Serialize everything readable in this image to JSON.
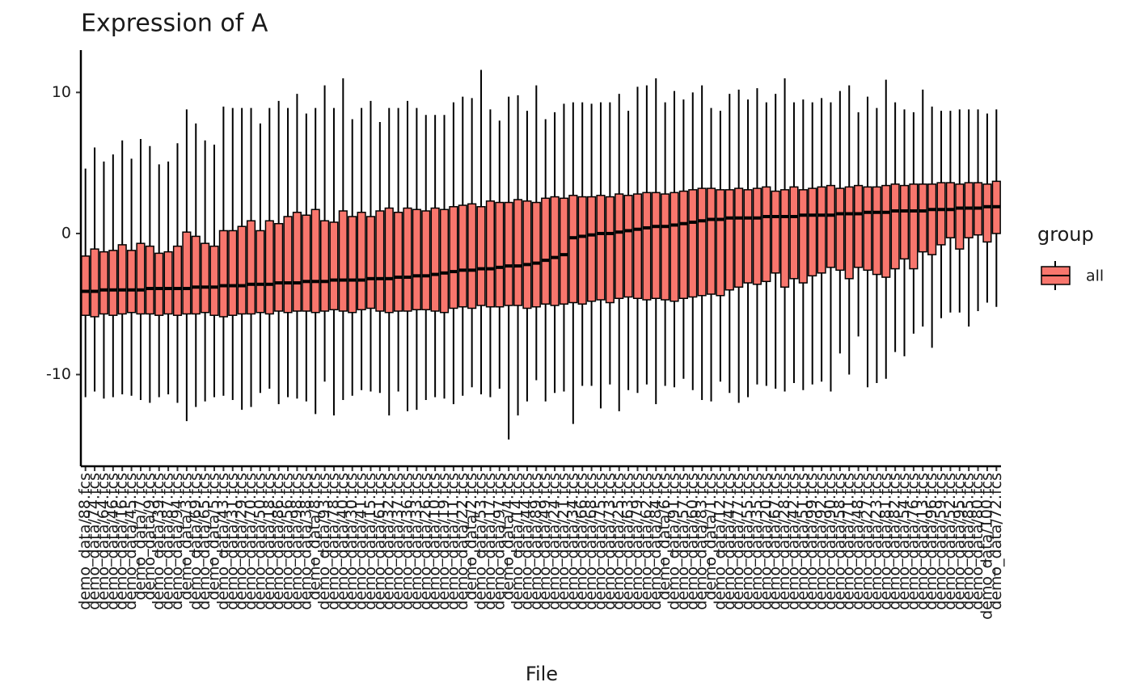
{
  "chart_data": {
    "type": "boxplot",
    "title": "Expression of A",
    "x_label": "File",
    "legend_title": "group",
    "categories": [
      "demo_data/88.fcs",
      "demo_data/74.fcs",
      "demo_data/64.fcs",
      "demo_data/46.fcs",
      "demo_data/16.fcs",
      "demo_data/45.fcs",
      "demo_data/7.fcs",
      "demo_data/9.fcs",
      "demo_data/39.fcs",
      "demo_data/87.fcs",
      "demo_data/94.fcs",
      "demo_data/3.fcs",
      "demo_data/69.fcs",
      "demo_data/65.fcs",
      "demo_data/5.fcs",
      "demo_data/43.fcs",
      "demo_data/31.fcs",
      "demo_data/29.fcs",
      "demo_data/70.fcs",
      "demo_data/50.fcs",
      "demo_data/18.fcs",
      "demo_data/86.fcs",
      "demo_data/56.fcs",
      "demo_data/98.fcs",
      "demo_data/38.fcs",
      "demo_data/8.fcs",
      "demo_data/93.fcs",
      "demo_data/78.fcs",
      "demo_data/40.fcs",
      "demo_data/30.fcs",
      "demo_data/41.fcs",
      "demo_data/15.fcs",
      "demo_data/61.fcs",
      "demo_data/32.fcs",
      "demo_data/37.fcs",
      "demo_data/36.fcs",
      "demo_data/33.fcs",
      "demo_data/26.fcs",
      "demo_data/10.fcs",
      "demo_data/19.fcs",
      "demo_data/11.fcs",
      "demo_data/22.fcs",
      "demo_data/2.fcs",
      "demo_data/53.fcs",
      "demo_data/17.fcs",
      "demo_data/97.fcs",
      "demo_data/4.fcs",
      "demo_data/14.fcs",
      "demo_data/44.fcs",
      "demo_data/89.fcs",
      "demo_data/49.fcs",
      "demo_data/24.fcs",
      "demo_data/21.fcs",
      "demo_data/34.fcs",
      "demo_data/66.fcs",
      "demo_data/68.fcs",
      "demo_data/75.fcs",
      "demo_data/73.fcs",
      "demo_data/25.fcs",
      "demo_data/63.fcs",
      "demo_data/79.fcs",
      "demo_data/62.fcs",
      "demo_data/84.fcs",
      "demo_data/6.fcs",
      "demo_data/91.fcs",
      "demo_data/57.fcs",
      "demo_data/60.fcs",
      "demo_data/83.fcs",
      "demo_data/1.fcs",
      "demo_data/12.fcs",
      "demo_data/47.fcs",
      "demo_data/77.fcs",
      "demo_data/55.fcs",
      "demo_data/35.fcs",
      "demo_data/20.fcs",
      "demo_data/67.fcs",
      "demo_data/28.fcs",
      "demo_data/42.fcs",
      "demo_data/51.fcs",
      "demo_data/99.fcs",
      "demo_data/92.fcs",
      "demo_data/90.fcs",
      "demo_data/58.fcs",
      "demo_data/71.fcs",
      "demo_data/48.fcs",
      "demo_data/27.fcs",
      "demo_data/23.fcs",
      "demo_data/81.fcs",
      "demo_data/82.fcs",
      "demo_data/54.fcs",
      "demo_data/76.fcs",
      "demo_data/13.fcs",
      "demo_data/96.fcs",
      "demo_data/59.fcs",
      "demo_data/52.fcs",
      "demo_data/95.fcs",
      "demo_data/85.fcs",
      "demo_data/80.fcs",
      "demo_data/100.fcs",
      "demo_data/72.fcs"
    ],
    "series": [
      {
        "name": "all",
        "color": "#F8766D",
        "min": [
          -11.6,
          -11.2,
          -11.7,
          -11.6,
          -11.4,
          -11.5,
          -11.8,
          -12.0,
          -11.6,
          -11.4,
          -12.0,
          -13.3,
          -12.3,
          -11.9,
          -11.6,
          -11.5,
          -11.8,
          -12.5,
          -12.3,
          -11.3,
          -11.0,
          -12.1,
          -11.6,
          -11.7,
          -11.9,
          -12.8,
          -10.5,
          -12.9,
          -11.8,
          -11.5,
          -11.1,
          -11.2,
          -11.3,
          -12.9,
          -11.2,
          -12.6,
          -12.5,
          -11.8,
          -11.6,
          -11.7,
          -12.1,
          -11.5,
          -10.9,
          -11.4,
          -11.6,
          -11.0,
          -14.6,
          -12.9,
          -11.9,
          -10.4,
          -11.9,
          -11.3,
          -11.2,
          -13.5,
          -10.8,
          -10.8,
          -12.4,
          -10.7,
          -12.6,
          -11.1,
          -11.3,
          -10.7,
          -12.1,
          -10.8,
          -10.9,
          -10.3,
          -11.1,
          -11.8,
          -11.9,
          -10.5,
          -11.3,
          -12.0,
          -11.6,
          -10.7,
          -10.8,
          -11.0,
          -11.2,
          -10.6,
          -11.1,
          -10.7,
          -10.5,
          -11.2,
          -8.5,
          -10.0,
          -7.3,
          -10.9,
          -10.6,
          -10.3,
          -8.4,
          -8.7,
          -7.1,
          -6.6,
          -8.1,
          -6.0,
          -5.6,
          -5.6,
          -6.6,
          -5.5,
          -4.9,
          -5.2
        ],
        "q1": [
          -5.8,
          -5.9,
          -5.7,
          -5.8,
          -5.7,
          -5.6,
          -5.7,
          -5.7,
          -5.8,
          -5.7,
          -5.8,
          -5.7,
          -5.7,
          -5.6,
          -5.8,
          -5.9,
          -5.8,
          -5.7,
          -5.7,
          -5.6,
          -5.7,
          -5.5,
          -5.6,
          -5.5,
          -5.5,
          -5.6,
          -5.5,
          -5.4,
          -5.5,
          -5.6,
          -5.4,
          -5.3,
          -5.5,
          -5.6,
          -5.5,
          -5.5,
          -5.4,
          -5.4,
          -5.5,
          -5.6,
          -5.3,
          -5.2,
          -5.3,
          -5.1,
          -5.2,
          -5.2,
          -5.1,
          -5.1,
          -5.3,
          -5.2,
          -5.0,
          -5.1,
          -5.0,
          -4.9,
          -5.0,
          -4.8,
          -4.7,
          -4.9,
          -4.6,
          -4.5,
          -4.6,
          -4.7,
          -4.6,
          -4.7,
          -4.8,
          -4.6,
          -4.5,
          -4.4,
          -4.3,
          -4.4,
          -4.0,
          -3.8,
          -3.5,
          -3.6,
          -3.4,
          -2.8,
          -3.8,
          -3.2,
          -3.5,
          -3.0,
          -2.8,
          -2.4,
          -2.6,
          -3.2,
          -2.4,
          -2.6,
          -2.9,
          -3.1,
          -2.5,
          -1.8,
          -2.5,
          -1.3,
          -1.5,
          -0.8,
          -0.3,
          -1.1,
          -0.3,
          -0.1,
          -0.6,
          0.0
        ],
        "median": [
          -4.1,
          -4.1,
          -4.0,
          -4.0,
          -4.0,
          -4.0,
          -4.0,
          -3.9,
          -3.9,
          -3.9,
          -3.9,
          -3.9,
          -3.8,
          -3.8,
          -3.8,
          -3.7,
          -3.7,
          -3.7,
          -3.6,
          -3.6,
          -3.6,
          -3.5,
          -3.5,
          -3.5,
          -3.4,
          -3.4,
          -3.4,
          -3.3,
          -3.3,
          -3.3,
          -3.3,
          -3.2,
          -3.2,
          -3.2,
          -3.1,
          -3.1,
          -3.0,
          -3.0,
          -2.9,
          -2.8,
          -2.7,
          -2.6,
          -2.6,
          -2.5,
          -2.5,
          -2.4,
          -2.3,
          -2.3,
          -2.2,
          -2.1,
          -1.9,
          -1.7,
          -1.5,
          -0.3,
          -0.2,
          -0.1,
          0.0,
          0.0,
          0.1,
          0.2,
          0.3,
          0.4,
          0.5,
          0.5,
          0.6,
          0.7,
          0.8,
          0.9,
          1.0,
          1.0,
          1.1,
          1.1,
          1.1,
          1.1,
          1.2,
          1.2,
          1.2,
          1.2,
          1.3,
          1.3,
          1.3,
          1.3,
          1.4,
          1.4,
          1.4,
          1.5,
          1.5,
          1.5,
          1.6,
          1.6,
          1.6,
          1.6,
          1.7,
          1.7,
          1.7,
          1.8,
          1.8,
          1.8,
          1.9,
          1.9
        ],
        "q3": [
          -1.6,
          -1.1,
          -1.3,
          -1.2,
          -0.8,
          -1.2,
          -0.7,
          -0.9,
          -1.4,
          -1.3,
          -0.9,
          0.1,
          -0.2,
          -0.7,
          -0.9,
          0.2,
          0.2,
          0.5,
          0.9,
          0.2,
          0.9,
          0.7,
          1.2,
          1.5,
          1.3,
          1.7,
          0.9,
          0.8,
          1.6,
          1.2,
          1.5,
          1.2,
          1.6,
          1.8,
          1.5,
          1.8,
          1.7,
          1.6,
          1.8,
          1.7,
          1.9,
          2.0,
          2.1,
          1.9,
          2.3,
          2.2,
          2.2,
          2.4,
          2.3,
          2.2,
          2.5,
          2.6,
          2.5,
          2.7,
          2.6,
          2.6,
          2.7,
          2.6,
          2.8,
          2.7,
          2.8,
          2.9,
          2.9,
          2.8,
          2.9,
          3.0,
          3.1,
          3.2,
          3.2,
          3.1,
          3.1,
          3.2,
          3.1,
          3.2,
          3.3,
          3.0,
          3.1,
          3.3,
          3.1,
          3.2,
          3.3,
          3.4,
          3.2,
          3.3,
          3.4,
          3.3,
          3.3,
          3.4,
          3.5,
          3.4,
          3.5,
          3.5,
          3.5,
          3.6,
          3.6,
          3.5,
          3.6,
          3.6,
          3.5,
          3.7
        ],
        "max": [
          4.6,
          6.1,
          5.1,
          5.6,
          6.6,
          5.3,
          6.7,
          6.2,
          4.9,
          5.1,
          6.4,
          8.8,
          7.8,
          6.6,
          6.3,
          9.0,
          8.9,
          8.9,
          8.9,
          7.8,
          8.9,
          9.4,
          8.9,
          9.9,
          8.5,
          8.9,
          10.5,
          8.9,
          11.0,
          8.1,
          8.9,
          9.4,
          7.9,
          8.9,
          8.9,
          9.4,
          8.9,
          8.4,
          8.4,
          8.4,
          9.3,
          9.7,
          9.6,
          11.6,
          8.8,
          8.0,
          9.7,
          9.8,
          8.7,
          10.5,
          8.1,
          8.6,
          9.2,
          9.3,
          9.3,
          9.2,
          9.3,
          9.3,
          9.9,
          8.7,
          10.4,
          10.5,
          11.0,
          9.3,
          10.1,
          9.5,
          10.0,
          10.5,
          8.9,
          8.7,
          9.9,
          10.2,
          9.5,
          10.3,
          9.3,
          9.9,
          11.0,
          9.3,
          9.5,
          9.3,
          9.6,
          9.3,
          10.1,
          10.5,
          8.6,
          9.7,
          8.9,
          10.9,
          9.3,
          8.8,
          8.6,
          10.2,
          9.0,
          8.7,
          8.7,
          8.8,
          8.8,
          8.8,
          8.5,
          8.8
        ]
      }
    ],
    "ylim": [
      -16.5,
      13
    ],
    "yticks": [
      -10,
      0,
      10
    ],
    "grid": false,
    "legend_position": "right"
  }
}
